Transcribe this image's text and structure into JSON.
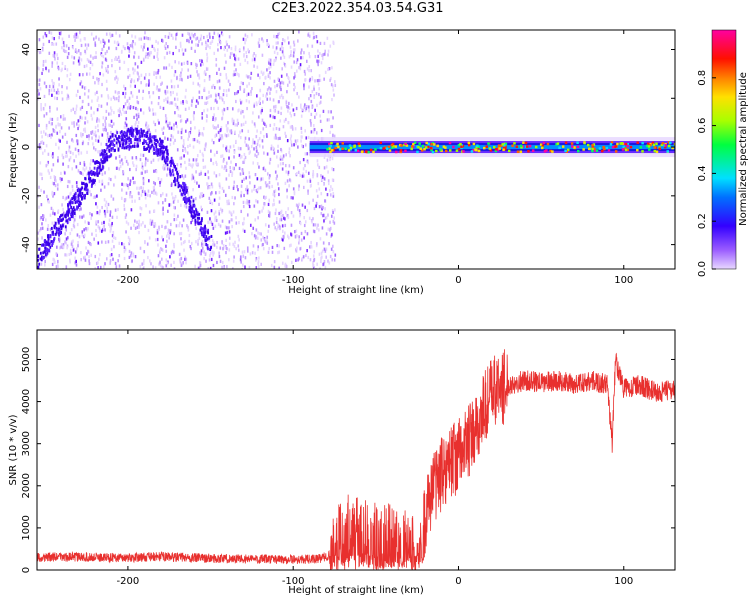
{
  "title": "C2E3.2022.354.03.54.G31",
  "colors": {
    "snr_line": "#e8302e",
    "spectrogram_noise": "#b98cff",
    "spectrogram_trace": "#3a00e8"
  },
  "colorbar": {
    "label": "Normalized spectral amplitude",
    "range": [
      0,
      1
    ],
    "ticks": [
      "0.0",
      "0.2",
      "0.4",
      "0.6",
      "0.8"
    ],
    "colormap": "hsv-like (violet → blue → cyan → green → yellow → red → magenta)"
  },
  "chart_data": [
    {
      "type": "heatmap",
      "title": "",
      "xlabel": "Height of straight line (km)",
      "ylabel": "Frequency (Hz)",
      "xlim": [
        -255,
        131
      ],
      "ylim": [
        -50,
        48
      ],
      "xticks": [
        -200,
        -100,
        0,
        100
      ],
      "yticks": [
        -40,
        -20,
        0,
        20,
        40
      ],
      "features": [
        {
          "name": "noisy region",
          "x_range": [
            -255,
            -75
          ]
        },
        {
          "name": "arc trace",
          "points": [
            [
              -255,
              -45
            ],
            [
              -230,
              -20
            ],
            [
              -210,
              2
            ],
            [
              -195,
              5
            ],
            [
              -180,
              0
            ],
            [
              -165,
              -20
            ],
            [
              -150,
              -40
            ]
          ]
        },
        {
          "name": "signal band",
          "x_range": [
            -90,
            131
          ],
          "frequency": 0,
          "bandwidth_hz": 6
        }
      ]
    },
    {
      "type": "line",
      "title": "",
      "xlabel": "Height of straight line (km)",
      "ylabel": "SNR (10 * v/v)",
      "xlim": [
        -255,
        131
      ],
      "ylim": [
        0,
        5700
      ],
      "xticks": [
        -200,
        -100,
        0,
        100
      ],
      "yticks": [
        0,
        1000,
        2000,
        3000,
        4000,
        5000
      ],
      "series": [
        {
          "x": [
            -255,
            -240,
            -220,
            -200,
            -180,
            -160,
            -140,
            -120,
            -100,
            -85,
            -78,
            -70,
            -60,
            -50,
            -40,
            -30,
            -25,
            -20,
            -15,
            -10,
            -5,
            0,
            5,
            10,
            15,
            20,
            25,
            30,
            40,
            50,
            60,
            70,
            80,
            90,
            93,
            95,
            100,
            110,
            120,
            131
          ],
          "y": [
            300,
            310,
            300,
            290,
            320,
            290,
            270,
            260,
            250,
            260,
            350,
            1200,
            1000,
            900,
            900,
            700,
            600,
            1400,
            2000,
            2300,
            2600,
            2700,
            3000,
            3200,
            3800,
            4200,
            4300,
            4400,
            4500,
            4450,
            4500,
            4400,
            4500,
            4400,
            3000,
            5000,
            4300,
            4400,
            4200,
            4300
          ]
        }
      ]
    }
  ]
}
